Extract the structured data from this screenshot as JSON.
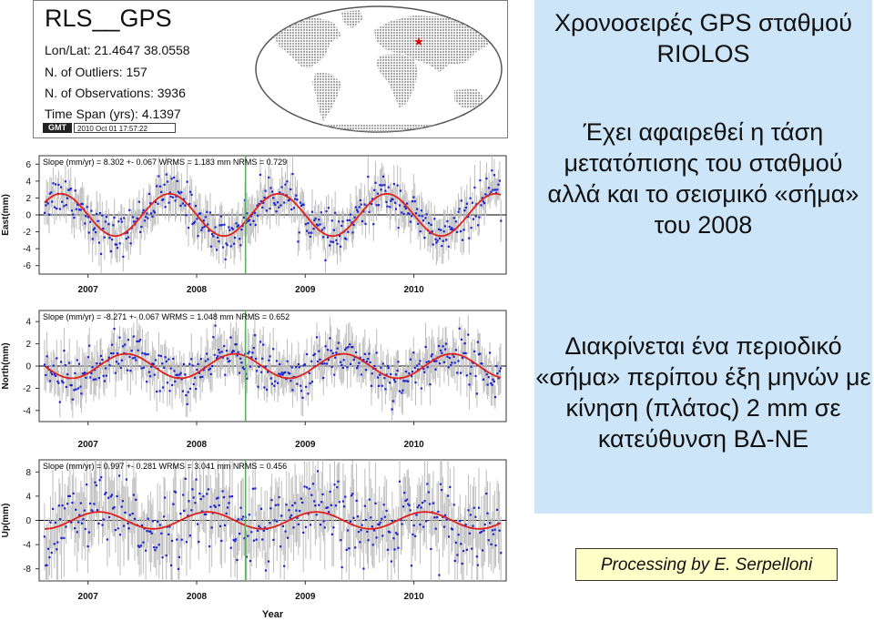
{
  "header": {
    "station": "RLS__GPS",
    "lines": [
      "Lon/Lat: 21.4647   38.0558",
      "N. of Outliers: 157",
      "N. of Observations: 3936",
      "Time Span (yrs): 4.1397"
    ],
    "gmt_logo": "GMT",
    "gmt_stamp": "2010 Oct 01 17:57:22"
  },
  "sidebar": {
    "title": "Χρονοσειρές GPS σταθμού RIOLOS",
    "paragraph1": "Έχει αφαιρεθεί η τάση μετατόπισης του σταθμού αλλά και το σεισμικό «σήμα» του 2008",
    "paragraph2": "Διακρίνεται ένα περιοδικό «σήμα» περίπου έξη μηνών με κίνηση (πλάτος) 2 mm σε κατεύθυνση ΒΔ-ΝΕ",
    "credit": "Processing by E. Serpelloni"
  },
  "colors": {
    "points": "#1a22d6",
    "error_bars": "#bdbdbd",
    "fit_curve": "#e0201c",
    "event_line": "#3ec43e",
    "sidebar_bg": "#cde5f8",
    "credit_bg": "#ffffc8",
    "map_land": "#a8a8a8",
    "map_ocean": "#ffffff",
    "map_marker": "#e00000"
  },
  "chart_data": [
    {
      "type": "scatter",
      "ylabel": "East(mm)",
      "stats": "Slope (mm/yr) = 8.302 +- 0.067 WRMS = 1.183 mm NRMS = 0.729",
      "x_ticks": [
        "2007",
        "2008",
        "2009",
        "2010"
      ],
      "x_tick_values": [
        2007,
        2008,
        2009,
        2010
      ],
      "y_ticks": [
        6,
        4,
        2,
        0,
        -2,
        -4,
        -6
      ],
      "ylim": [
        -7,
        7
      ],
      "xlim": [
        2006.55,
        2010.85
      ],
      "event_year": 2008.45,
      "fit": {
        "amplitude": 2.5,
        "period_years": 1.0,
        "peak_year": 2007.75
      },
      "scatter_sd": 1.2,
      "point_count": 420
    },
    {
      "type": "scatter",
      "ylabel": "North(mm)",
      "stats": "Slope (mm/yr) = -8.271 +- 0.067 WRMS = 1.048 mm NRMS = 0.652",
      "x_ticks": [
        "2007",
        "2008",
        "2009",
        "2010"
      ],
      "x_tick_values": [
        2007,
        2008,
        2009,
        2010
      ],
      "y_ticks": [
        4,
        2,
        0,
        -2,
        -4
      ],
      "ylim": [
        -5,
        5
      ],
      "xlim": [
        2006.55,
        2010.85
      ],
      "event_year": 2008.45,
      "fit": {
        "amplitude": 1.1,
        "period_years": 1.0,
        "peak_year": 2007.35
      },
      "scatter_sd": 1.0,
      "point_count": 420
    },
    {
      "type": "scatter",
      "ylabel": "Up(mm)",
      "stats": "Slope (mm/yr) = 0.997 +- 0.281 WRMS = 3.041 mm NRMS = 0.456",
      "x_ticks": [
        "2007",
        "2008",
        "2009",
        "2010"
      ],
      "x_tick_values": [
        2007,
        2008,
        2009,
        2010
      ],
      "y_ticks": [
        8,
        4,
        0,
        -4,
        -8
      ],
      "ylim": [
        -10,
        10
      ],
      "xlim": [
        2006.55,
        2010.85
      ],
      "event_year": 2008.45,
      "fit": {
        "amplitude": 1.4,
        "period_years": 1.0,
        "peak_year": 2007.1
      },
      "scatter_sd": 3.0,
      "point_count": 380,
      "xlabel": "Year"
    }
  ]
}
